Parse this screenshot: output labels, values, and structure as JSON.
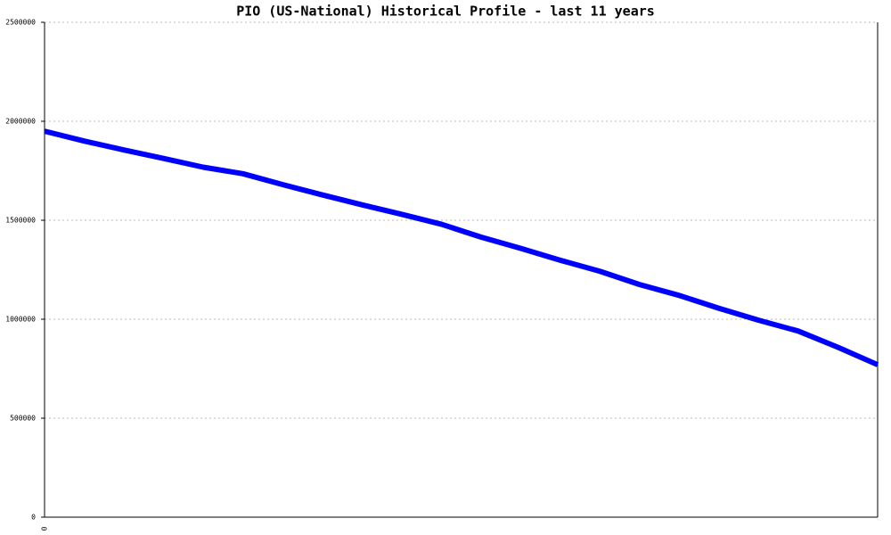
{
  "chart_data": {
    "type": "line",
    "title": "PIO (US-National) Historical Profile - last 11 years",
    "categories": [
      "0",
      null,
      null,
      null,
      null,
      null,
      null,
      null,
      null,
      null,
      null,
      null,
      null,
      null,
      null,
      null,
      null,
      null,
      null,
      null,
      null,
      null
    ],
    "series": [
      {
        "color": "#0000ff",
        "values": [
          1950000,
          1900000,
          1855000,
          1812000,
          1768000,
          1735000,
          1680000,
          1628000,
          1578000,
          1530000,
          1480000,
          1415000,
          1358000,
          1298000,
          1242000,
          1175000,
          1120000,
          1055000,
          995000,
          940000,
          858000,
          770000
        ]
      }
    ],
    "ylim": [
      0,
      2500000
    ],
    "yticks": [
      0,
      500000,
      1000000,
      1500000,
      2000000,
      2500000
    ],
    "grid": true
  }
}
